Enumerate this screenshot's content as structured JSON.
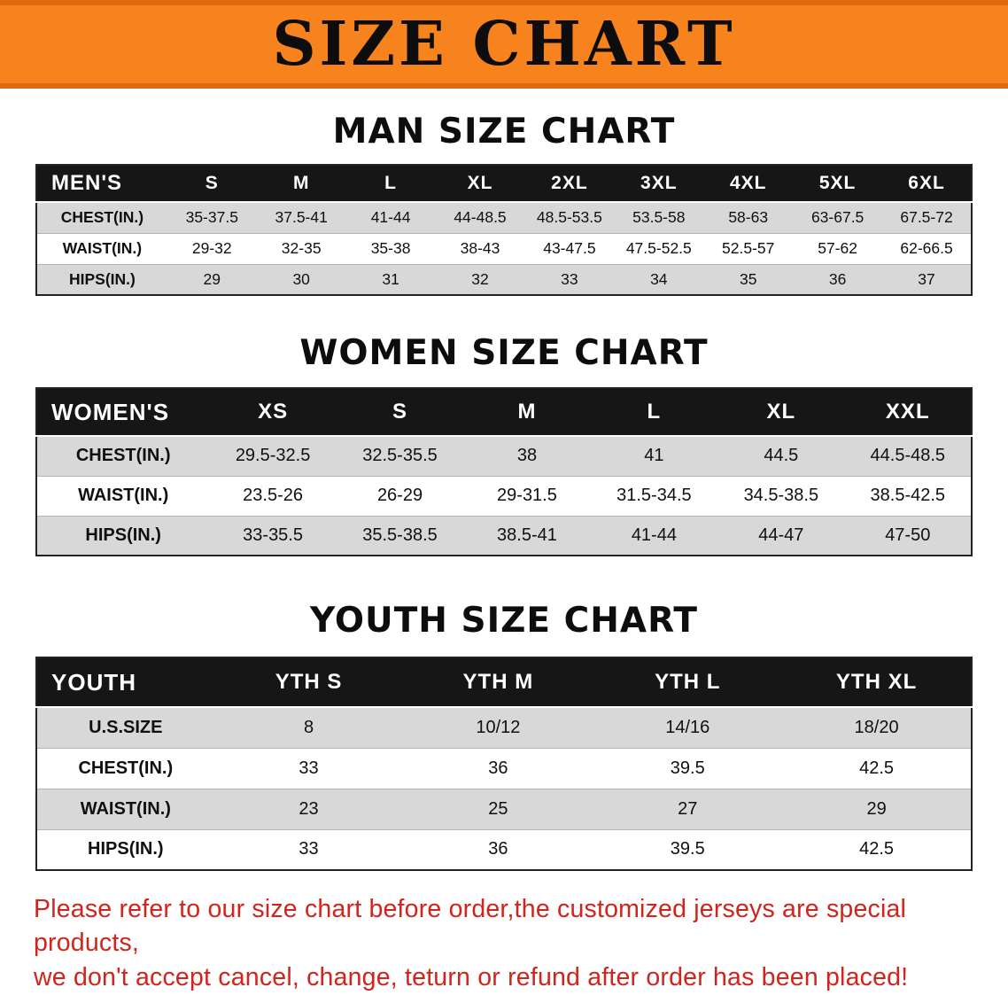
{
  "banner": {
    "title": "SIZE CHART"
  },
  "sections": [
    {
      "id": "men",
      "heading": "MAN SIZE CHART",
      "table": {
        "header": [
          "MEN'S",
          "S",
          "M",
          "L",
          "XL",
          "2XL",
          "3XL",
          "4XL",
          "5XL",
          "6XL"
        ],
        "rows": [
          [
            "CHEST(IN.)",
            "35-37.5",
            "37.5-41",
            "41-44",
            "44-48.5",
            "48.5-53.5",
            "53.5-58",
            "58-63",
            "63-67.5",
            "67.5-72"
          ],
          [
            "WAIST(IN.)",
            "29-32",
            "32-35",
            "35-38",
            "38-43",
            "43-47.5",
            "47.5-52.5",
            "52.5-57",
            "57-62",
            "62-66.5"
          ],
          [
            "HIPS(IN.)",
            "29",
            "30",
            "31",
            "32",
            "33",
            "34",
            "35",
            "36",
            "37"
          ]
        ]
      }
    },
    {
      "id": "women",
      "heading": "WOMEN SIZE CHART",
      "table": {
        "header": [
          "WOMEN'S",
          "XS",
          "S",
          "M",
          "L",
          "XL",
          "XXL"
        ],
        "rows": [
          [
            "CHEST(IN.)",
            "29.5-32.5",
            "32.5-35.5",
            "38",
            "41",
            "44.5",
            "44.5-48.5"
          ],
          [
            "WAIST(IN.)",
            "23.5-26",
            "26-29",
            "29-31.5",
            "31.5-34.5",
            "34.5-38.5",
            "38.5-42.5"
          ],
          [
            "HIPS(IN.)",
            "33-35.5",
            "35.5-38.5",
            "38.5-41",
            "41-44",
            "44-47",
            "47-50"
          ]
        ]
      }
    },
    {
      "id": "youth",
      "heading": "YOUTH SIZE CHART",
      "table": {
        "header": [
          "YOUTH",
          "YTH S",
          "YTH M",
          "YTH L",
          "YTH XL"
        ],
        "rows": [
          [
            "U.S.SIZE",
            "8",
            "10/12",
            "14/16",
            "18/20"
          ],
          [
            "CHEST(IN.)",
            "33",
            "36",
            "39.5",
            "42.5"
          ],
          [
            "WAIST(IN.)",
            "23",
            "25",
            "27",
            "29"
          ],
          [
            "HIPS(IN.)",
            "33",
            "36",
            "39.5",
            "42.5"
          ]
        ]
      }
    }
  ],
  "disclaimer": {
    "line1": "Please refer to our size chart before order,the customized jerseys are special products,",
    "line2": "we don't accept cancel, change, teturn or refund after order has been placed!"
  },
  "colors": {
    "banner-orange": "#f6831d",
    "banner-edge": "#dd6a10",
    "header-black": "#161616",
    "stripe-gray": "#d8d8d8",
    "disclaimer-red": "#d0241c",
    "text-black": "#111111"
  }
}
